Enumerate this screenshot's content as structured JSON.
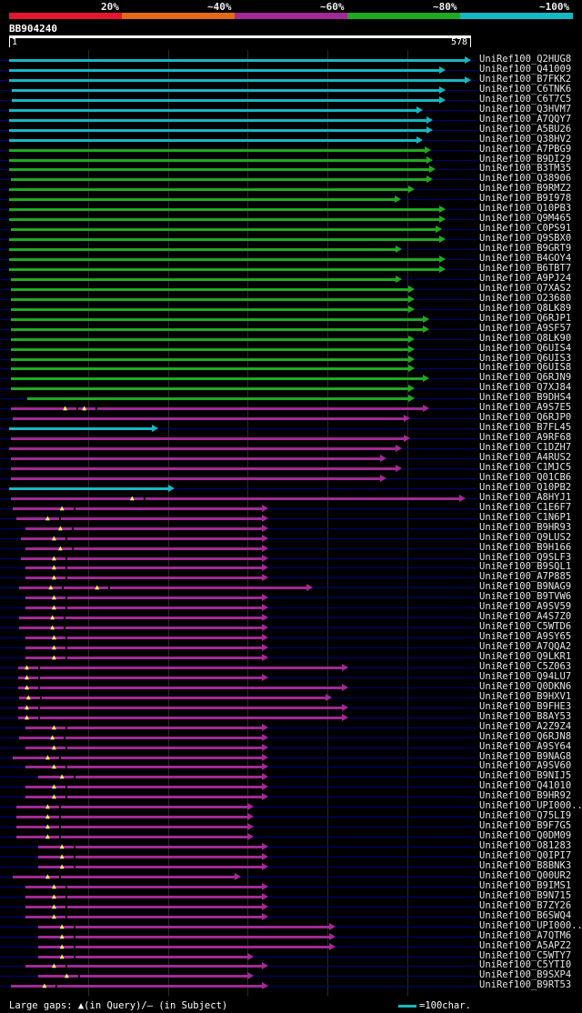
{
  "legend": {
    "bands": [
      {
        "label": "20%",
        "color": "#e3172f"
      },
      {
        "label": "~40%",
        "color": "#e36b16"
      },
      {
        "label": "~60%",
        "color": "#a12a95"
      },
      {
        "label": "~80%",
        "color": "#1faa1f"
      },
      {
        "label": "~100%",
        "color": "#17b7c3"
      }
    ]
  },
  "query": {
    "name": "BB904240",
    "start_label": "1",
    "end_label": "578",
    "length": 578
  },
  "footer": {
    "gaps_text": "Large gaps: ▲(in Query)/– (in Subject)",
    "scale_text": "=100char."
  },
  "chart_data": {
    "type": "alignment",
    "title": "BB904240",
    "query_length": 578,
    "scale_unit": 100,
    "hits": [
      {
        "label": "UniRef100_Q2HUG8",
        "start": 1,
        "end": 572,
        "cls": 4
      },
      {
        "label": "UniRef100_Q41009",
        "start": 1,
        "end": 540,
        "cls": 4
      },
      {
        "label": "UniRef100_B7FKK2",
        "start": 1,
        "end": 572,
        "cls": 4
      },
      {
        "label": "UniRef100_C6TNK6",
        "start": 4,
        "end": 540,
        "cls": 4
      },
      {
        "label": "UniRef100_C6T7C5",
        "start": 4,
        "end": 540,
        "cls": 4
      },
      {
        "label": "UniRef100_Q3HVM7",
        "start": 1,
        "end": 512,
        "cls": 4
      },
      {
        "label": "UniRef100_A7QQY7",
        "start": 1,
        "end": 524,
        "cls": 4
      },
      {
        "label": "UniRef100_A5BU26",
        "start": 1,
        "end": 524,
        "cls": 4
      },
      {
        "label": "UniRef100_Q38HV2",
        "start": 1,
        "end": 512,
        "cls": 4
      },
      {
        "label": "UniRef100_A7PBG9",
        "start": 1,
        "end": 522,
        "cls": 3
      },
      {
        "label": "UniRef100_B9DI29",
        "start": 1,
        "end": 524,
        "cls": 3
      },
      {
        "label": "UniRef100_B3TM35",
        "start": 1,
        "end": 528,
        "cls": 3
      },
      {
        "label": "UniRef100_Q38906",
        "start": 3,
        "end": 524,
        "cls": 3
      },
      {
        "label": "UniRef100_B9RMZ2",
        "start": 1,
        "end": 502,
        "cls": 3
      },
      {
        "label": "UniRef100_B9I978",
        "start": 1,
        "end": 484,
        "cls": 3
      },
      {
        "label": "UniRef100_Q10PB3",
        "start": 1,
        "end": 540,
        "cls": 3
      },
      {
        "label": "UniRef100_Q9M465",
        "start": 1,
        "end": 540,
        "cls": 3
      },
      {
        "label": "UniRef100_C0PS91",
        "start": 3,
        "end": 536,
        "cls": 3
      },
      {
        "label": "UniRef100_Q9SBX0",
        "start": 1,
        "end": 540,
        "cls": 3
      },
      {
        "label": "UniRef100_B9GRT9",
        "start": 1,
        "end": 486,
        "cls": 3
      },
      {
        "label": "UniRef100_B4GOY4",
        "start": 1,
        "end": 540,
        "cls": 3
      },
      {
        "label": "UniRef100_B6TBT7",
        "start": 1,
        "end": 540,
        "cls": 3
      },
      {
        "label": "UniRef100_A9PJ24",
        "start": 3,
        "end": 486,
        "cls": 3
      },
      {
        "label": "UniRef100_Q7XAS2",
        "start": 3,
        "end": 502,
        "cls": 3
      },
      {
        "label": "UniRef100_O23680",
        "start": 3,
        "end": 502,
        "cls": 3
      },
      {
        "label": "UniRef100_Q8LK89",
        "start": 3,
        "end": 502,
        "cls": 3
      },
      {
        "label": "UniRef100_Q6RJP1",
        "start": 3,
        "end": 520,
        "cls": 3
      },
      {
        "label": "UniRef100_A9SF57",
        "start": 3,
        "end": 520,
        "cls": 3
      },
      {
        "label": "UniRef100_Q8LK90",
        "start": 3,
        "end": 502,
        "cls": 3
      },
      {
        "label": "UniRef100_Q6UIS4",
        "start": 3,
        "end": 502,
        "cls": 3
      },
      {
        "label": "UniRef100_Q6UIS3",
        "start": 3,
        "end": 502,
        "cls": 3
      },
      {
        "label": "UniRef100_Q6UIS8",
        "start": 3,
        "end": 502,
        "cls": 3
      },
      {
        "label": "UniRef100_Q6RJN9",
        "start": 3,
        "end": 520,
        "cls": 3
      },
      {
        "label": "UniRef100_Q7XJ84",
        "start": 3,
        "end": 502,
        "cls": 3
      },
      {
        "label": "UniRef100_B9DHS4",
        "start": 24,
        "end": 502,
        "cls": 3
      },
      {
        "label": "UniRef100_A9S7E5",
        "start": 3,
        "end": 520,
        "cls": 2,
        "marks": [
          72,
          96
        ]
      },
      {
        "label": "UniRef100_Q6RJP0",
        "start": 6,
        "end": 496,
        "cls": 2
      },
      {
        "label": "UniRef100_B7FL45",
        "start": 1,
        "end": 180,
        "cls": 4
      },
      {
        "label": "UniRef100_A9RF68",
        "start": 3,
        "end": 496,
        "cls": 2
      },
      {
        "label": "UniRef100_C1DZH7",
        "start": 1,
        "end": 486,
        "cls": 2
      },
      {
        "label": "UniRef100_A4RUS2",
        "start": 3,
        "end": 466,
        "cls": 2
      },
      {
        "label": "UniRef100_C1MJC5",
        "start": 3,
        "end": 486,
        "cls": 2
      },
      {
        "label": "UniRef100_Q01CB6",
        "start": 3,
        "end": 466,
        "cls": 2
      },
      {
        "label": "UniRef100_Q10PB2",
        "start": 1,
        "end": 200,
        "cls": 4
      },
      {
        "label": "UniRef100_A8HYJ1",
        "start": 3,
        "end": 566,
        "cls": 2,
        "marks": [
          156
        ]
      },
      {
        "label": "UniRef100_C1E6F7",
        "start": 6,
        "end": 318,
        "cls": 2,
        "marks": [
          68
        ]
      },
      {
        "label": "UniRef100_C1N6P1",
        "start": 10,
        "end": 318,
        "cls": 2,
        "marks": [
          50
        ]
      },
      {
        "label": "UniRef100_B9HR93",
        "start": 22,
        "end": 318,
        "cls": 2,
        "marks": [
          66
        ]
      },
      {
        "label": "UniRef100_Q9LUS2",
        "start": 16,
        "end": 318,
        "cls": 2,
        "marks": [
          58
        ]
      },
      {
        "label": "UniRef100_B9H166",
        "start": 22,
        "end": 318,
        "cls": 2,
        "marks": [
          66
        ]
      },
      {
        "label": "UniRef100_Q9SLF3",
        "start": 16,
        "end": 318,
        "cls": 2,
        "marks": [
          58
        ]
      },
      {
        "label": "UniRef100_B9SQL1",
        "start": 22,
        "end": 318,
        "cls": 2,
        "marks": [
          58
        ]
      },
      {
        "label": "UniRef100_A7P885",
        "start": 22,
        "end": 318,
        "cls": 2,
        "marks": [
          58
        ]
      },
      {
        "label": "UniRef100_B9NAG9",
        "start": 14,
        "end": 374,
        "cls": 2,
        "marks": [
          54,
          112
        ]
      },
      {
        "label": "UniRef100_B9TVW6",
        "start": 22,
        "end": 318,
        "cls": 2,
        "marks": [
          58
        ]
      },
      {
        "label": "UniRef100_A9SV59",
        "start": 22,
        "end": 318,
        "cls": 2,
        "marks": [
          58
        ]
      },
      {
        "label": "UniRef100_A4S7Z0",
        "start": 14,
        "end": 318,
        "cls": 2,
        "marks": [
          56
        ]
      },
      {
        "label": "UniRef100_C5WTD6",
        "start": 14,
        "end": 318,
        "cls": 2,
        "marks": [
          56
        ]
      },
      {
        "label": "UniRef100_A9SY65",
        "start": 22,
        "end": 318,
        "cls": 2,
        "marks": [
          58
        ]
      },
      {
        "label": "UniRef100_A7QQA2",
        "start": 22,
        "end": 318,
        "cls": 2,
        "marks": [
          58
        ]
      },
      {
        "label": "UniRef100_Q9LKR1",
        "start": 22,
        "end": 318,
        "cls": 2,
        "marks": [
          58
        ]
      },
      {
        "label": "UniRef100_C5Z063",
        "start": 12,
        "end": 418,
        "cls": 2,
        "marks": [
          24
        ]
      },
      {
        "label": "UniRef100_Q94LU7",
        "start": 12,
        "end": 318,
        "cls": 2,
        "marks": [
          24
        ]
      },
      {
        "label": "UniRef100_Q0DKN6",
        "start": 12,
        "end": 418,
        "cls": 2,
        "marks": [
          24
        ]
      },
      {
        "label": "UniRef100_B9HXV1",
        "start": 14,
        "end": 398,
        "cls": 2,
        "marks": [
          26
        ]
      },
      {
        "label": "UniRef100_B9FHE3",
        "start": 12,
        "end": 418,
        "cls": 2,
        "marks": [
          24
        ]
      },
      {
        "label": "UniRef100_B8AY53",
        "start": 12,
        "end": 418,
        "cls": 2,
        "marks": [
          24
        ]
      },
      {
        "label": "UniRef100_A2Z9Z4",
        "start": 22,
        "end": 318,
        "cls": 2,
        "marks": [
          58
        ]
      },
      {
        "label": "UniRef100_Q6RJN8",
        "start": 14,
        "end": 318,
        "cls": 2,
        "marks": [
          56
        ]
      },
      {
        "label": "UniRef100_A9SY64",
        "start": 22,
        "end": 318,
        "cls": 2,
        "marks": [
          58
        ]
      },
      {
        "label": "UniRef100_B9NAG8",
        "start": 6,
        "end": 318,
        "cls": 2,
        "marks": [
          50
        ]
      },
      {
        "label": "UniRef100_A9SV60",
        "start": 22,
        "end": 318,
        "cls": 2,
        "marks": [
          58
        ]
      },
      {
        "label": "UniRef100_B9NIJ5",
        "start": 38,
        "end": 318,
        "cls": 2,
        "marks": [
          68
        ]
      },
      {
        "label": "UniRef100_Q41010",
        "start": 22,
        "end": 318,
        "cls": 2,
        "marks": [
          58
        ]
      },
      {
        "label": "UniRef100_B9HR92",
        "start": 22,
        "end": 318,
        "cls": 2,
        "marks": [
          58
        ]
      },
      {
        "label": "UniRef100_UPI000..",
        "start": 10,
        "end": 300,
        "cls": 2,
        "marks": [
          50
        ]
      },
      {
        "label": "UniRef100_Q75LI9",
        "start": 10,
        "end": 300,
        "cls": 2,
        "marks": [
          50
        ]
      },
      {
        "label": "UniRef100_B9F7G5",
        "start": 10,
        "end": 300,
        "cls": 2,
        "marks": [
          50
        ]
      },
      {
        "label": "UniRef100_Q0DM09",
        "start": 10,
        "end": 300,
        "cls": 2,
        "marks": [
          50
        ]
      },
      {
        "label": "UniRef100_O81283",
        "start": 38,
        "end": 318,
        "cls": 2,
        "marks": [
          68
        ]
      },
      {
        "label": "UniRef100_Q0IPI7",
        "start": 38,
        "end": 318,
        "cls": 2,
        "marks": [
          68
        ]
      },
      {
        "label": "UniRef100_B8BNK3",
        "start": 38,
        "end": 318,
        "cls": 2,
        "marks": [
          68
        ]
      },
      {
        "label": "UniRef100_Q00UR2",
        "start": 6,
        "end": 284,
        "cls": 2,
        "marks": [
          50
        ]
      },
      {
        "label": "UniRef100_B9IMS1",
        "start": 22,
        "end": 318,
        "cls": 2,
        "marks": [
          58
        ]
      },
      {
        "label": "UniRef100_B9N715",
        "start": 22,
        "end": 318,
        "cls": 2,
        "marks": [
          58
        ]
      },
      {
        "label": "UniRef100_B7ZY26",
        "start": 22,
        "end": 318,
        "cls": 2,
        "marks": [
          58
        ]
      },
      {
        "label": "UniRef100_B6SWQ4",
        "start": 22,
        "end": 318,
        "cls": 2,
        "marks": [
          58
        ]
      },
      {
        "label": "UniRef100_UPI000..",
        "start": 38,
        "end": 402,
        "cls": 2,
        "marks": [
          68
        ]
      },
      {
        "label": "UniRef100_A7QTM6",
        "start": 38,
        "end": 402,
        "cls": 2,
        "marks": [
          68
        ]
      },
      {
        "label": "UniRef100_A5APZ2",
        "start": 38,
        "end": 402,
        "cls": 2,
        "marks": [
          68
        ]
      },
      {
        "label": "UniRef100_C5WTY7",
        "start": 38,
        "end": 300,
        "cls": 2,
        "marks": [
          68
        ]
      },
      {
        "label": "UniRef100_C5YTI0",
        "start": 22,
        "end": 318,
        "cls": 2,
        "marks": [
          58
        ]
      },
      {
        "label": "UniRef100_B9SXP4",
        "start": 38,
        "end": 300,
        "cls": 2,
        "marks": [
          74
        ]
      },
      {
        "label": "UniRef100_B9RT53",
        "start": 3,
        "end": 318,
        "cls": 2,
        "marks": [
          46
        ]
      }
    ]
  }
}
